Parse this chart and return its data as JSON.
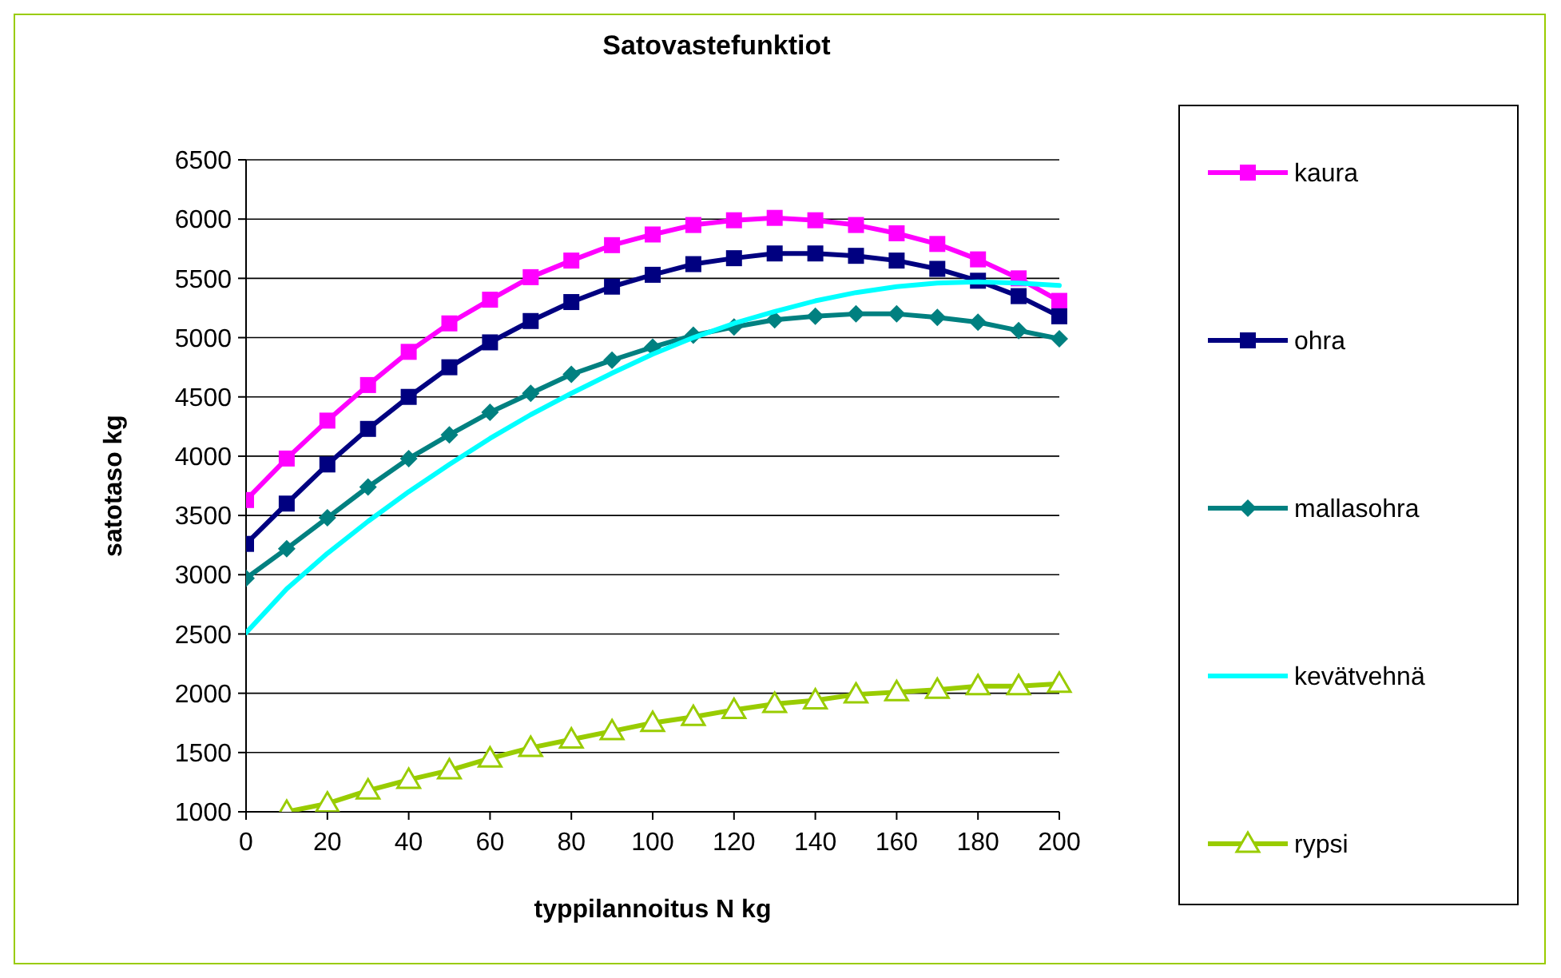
{
  "chart_data": {
    "type": "line",
    "title": "Satovastefunktiot",
    "xlabel": "typpilannoitus N kg",
    "ylabel": "satotaso kg",
    "x": [
      0,
      10,
      20,
      30,
      40,
      50,
      60,
      70,
      80,
      90,
      100,
      110,
      120,
      130,
      140,
      150,
      160,
      170,
      180,
      190,
      200
    ],
    "xlim": [
      0,
      200
    ],
    "xticks": [
      0,
      20,
      40,
      60,
      80,
      100,
      120,
      140,
      160,
      180,
      200
    ],
    "ylim": [
      1000,
      6500
    ],
    "yticks": [
      1000,
      1500,
      2000,
      2500,
      3000,
      3500,
      4000,
      4500,
      5000,
      5500,
      6000,
      6500
    ],
    "grid": "y",
    "legend": "right",
    "series": [
      {
        "name": "kaura",
        "color": "#ff00ff",
        "marker": "square",
        "values": [
          3630,
          3980,
          4300,
          4600,
          4880,
          5120,
          5320,
          5510,
          5650,
          5780,
          5870,
          5950,
          5990,
          6010,
          5990,
          5950,
          5880,
          5790,
          5660,
          5500,
          5310
        ]
      },
      {
        "name": "ohra",
        "color": "#000080",
        "marker": "square",
        "values": [
          3260,
          3600,
          3930,
          4230,
          4500,
          4750,
          4960,
          5140,
          5300,
          5430,
          5530,
          5620,
          5670,
          5710,
          5710,
          5690,
          5650,
          5580,
          5480,
          5350,
          5180
        ]
      },
      {
        "name": "mallasohra",
        "color": "#008080",
        "marker": "diamond",
        "values": [
          2970,
          3220,
          3480,
          3740,
          3980,
          4180,
          4370,
          4530,
          4690,
          4810,
          4920,
          5020,
          5090,
          5150,
          5180,
          5200,
          5200,
          5170,
          5130,
          5060,
          4990
        ]
      },
      {
        "name": "kevätvehnä",
        "color": "#00ffff",
        "marker": "none",
        "values": [
          2510,
          2880,
          3180,
          3450,
          3700,
          3930,
          4150,
          4350,
          4530,
          4700,
          4860,
          5000,
          5120,
          5220,
          5310,
          5380,
          5430,
          5460,
          5470,
          5460,
          5440
        ]
      },
      {
        "name": "rypsi",
        "color": "#99cc00",
        "marker": "triangle",
        "values": [
          null,
          1000,
          1070,
          1180,
          1270,
          1350,
          1450,
          1540,
          1610,
          1680,
          1750,
          1800,
          1860,
          1910,
          1940,
          1990,
          2010,
          2030,
          2060,
          2060,
          2080
        ]
      }
    ]
  }
}
